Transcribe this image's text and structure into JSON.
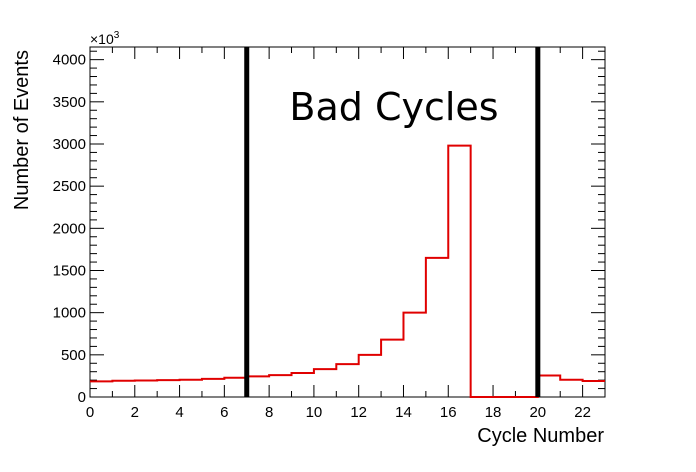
{
  "chart_data": {
    "type": "bar",
    "xlabel": "Cycle Number",
    "ylabel": "Number of Events",
    "y_multiplier": "×10",
    "y_multiplier_exp": "3",
    "xlim": [
      0,
      23
    ],
    "ylim": [
      0,
      4150
    ],
    "x_ticks": [
      0,
      2,
      4,
      6,
      8,
      10,
      12,
      14,
      16,
      18,
      20,
      22
    ],
    "y_ticks": [
      0,
      500,
      1000,
      1500,
      2000,
      2500,
      3000,
      3500,
      4000
    ],
    "grid": false,
    "series": [
      {
        "color": "#e00000",
        "bin_edges": [
          0,
          1,
          2,
          3,
          4,
          5,
          6,
          7,
          8,
          9,
          10,
          11,
          12,
          13,
          14,
          15,
          16,
          17,
          18,
          19,
          20,
          21,
          22,
          23
        ],
        "values": [
          185,
          192,
          195,
          200,
          205,
          215,
          228,
          245,
          260,
          285,
          330,
          390,
          500,
          680,
          1000,
          1650,
          2980,
          0,
          0,
          0,
          255,
          205,
          190
        ]
      }
    ],
    "vertical_lines": [
      7,
      20
    ],
    "annotations": [
      "Bad Cycles"
    ]
  }
}
